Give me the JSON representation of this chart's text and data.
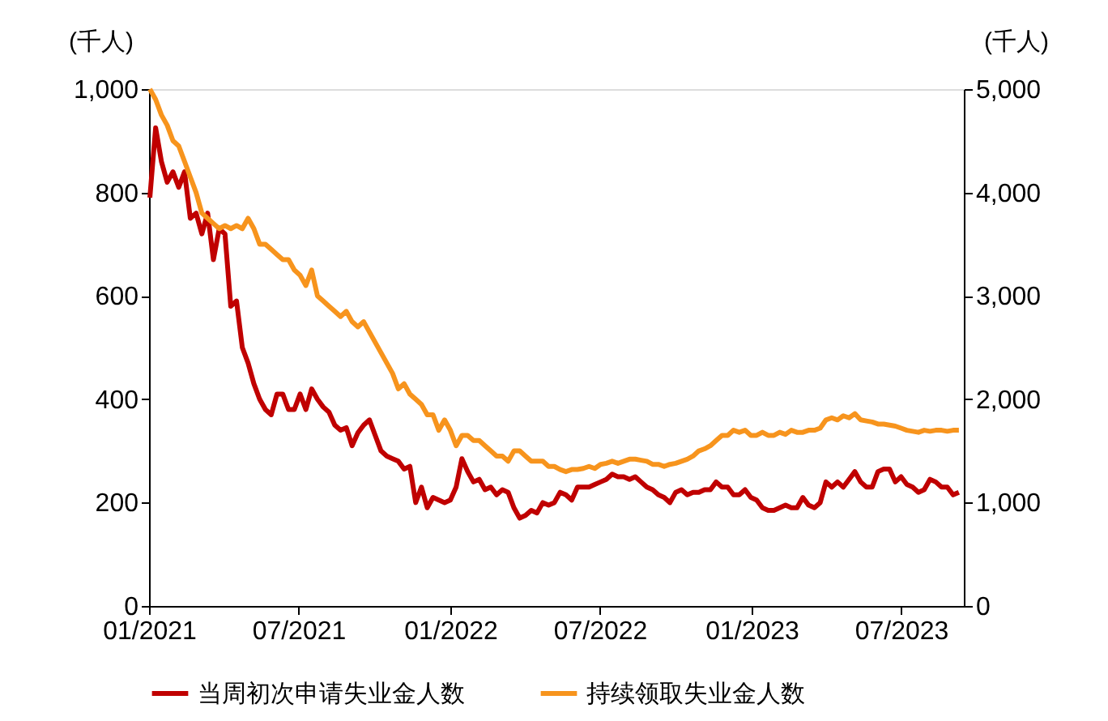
{
  "chart_data": {
    "type": "line",
    "ylabel": "(千人)",
    "y2label": "(千人)",
    "x": [
      "2021-01-02",
      "2021-01-09",
      "2021-01-16",
      "2021-01-23",
      "2021-01-30",
      "2021-02-06",
      "2021-02-13",
      "2021-02-20",
      "2021-02-27",
      "2021-03-06",
      "2021-03-13",
      "2021-03-20",
      "2021-03-27",
      "2021-04-03",
      "2021-04-10",
      "2021-04-17",
      "2021-04-24",
      "2021-05-01",
      "2021-05-08",
      "2021-05-15",
      "2021-05-22",
      "2021-05-29",
      "2021-06-05",
      "2021-06-12",
      "2021-06-19",
      "2021-06-26",
      "2021-07-03",
      "2021-07-10",
      "2021-07-17",
      "2021-07-24",
      "2021-07-31",
      "2021-08-07",
      "2021-08-14",
      "2021-08-21",
      "2021-08-28",
      "2021-09-04",
      "2021-09-11",
      "2021-09-18",
      "2021-09-25",
      "2021-10-02",
      "2021-10-09",
      "2021-10-16",
      "2021-10-23",
      "2021-10-30",
      "2021-11-06",
      "2021-11-13",
      "2021-11-20",
      "2021-11-27",
      "2021-12-04",
      "2021-12-11",
      "2021-12-18",
      "2021-12-25",
      "2022-01-01",
      "2022-01-08",
      "2022-01-15",
      "2022-01-22",
      "2022-01-29",
      "2022-02-05",
      "2022-02-12",
      "2022-02-19",
      "2022-02-26",
      "2022-03-05",
      "2022-03-12",
      "2022-03-19",
      "2022-03-26",
      "2022-04-02",
      "2022-04-09",
      "2022-04-16",
      "2022-04-23",
      "2022-04-30",
      "2022-05-07",
      "2022-05-14",
      "2022-05-21",
      "2022-05-28",
      "2022-06-04",
      "2022-06-11",
      "2022-06-18",
      "2022-06-25",
      "2022-07-02",
      "2022-07-09",
      "2022-07-16",
      "2022-07-23",
      "2022-07-30",
      "2022-08-06",
      "2022-08-13",
      "2022-08-20",
      "2022-08-27",
      "2022-09-03",
      "2022-09-10",
      "2022-09-17",
      "2022-09-24",
      "2022-10-01",
      "2022-10-08",
      "2022-10-15",
      "2022-10-22",
      "2022-10-29",
      "2022-11-05",
      "2022-11-12",
      "2022-11-19",
      "2022-11-26",
      "2022-12-03",
      "2022-12-10",
      "2022-12-17",
      "2022-12-24",
      "2022-12-31",
      "2023-01-07",
      "2023-01-14",
      "2023-01-21",
      "2023-01-28",
      "2023-02-04",
      "2023-02-11",
      "2023-02-18",
      "2023-02-25",
      "2023-03-04",
      "2023-03-11",
      "2023-03-18",
      "2023-03-25",
      "2023-04-01",
      "2023-04-08",
      "2023-04-15",
      "2023-04-22",
      "2023-04-29",
      "2023-05-06",
      "2023-05-13",
      "2023-05-20",
      "2023-05-27",
      "2023-06-03",
      "2023-06-10",
      "2023-06-17",
      "2023-06-24",
      "2023-07-01",
      "2023-07-08",
      "2023-07-15",
      "2023-07-22",
      "2023-07-29",
      "2023-08-05",
      "2023-08-12",
      "2023-08-19",
      "2023-08-26",
      "2023-09-02",
      "2023-09-09"
    ],
    "series": [
      {
        "name": "当周初次申请失业金人数",
        "color": "#c00000",
        "values": [
          790,
          925,
          860,
          820,
          840,
          810,
          840,
          750,
          760,
          720,
          760,
          670,
          730,
          720,
          580,
          590,
          500,
          470,
          430,
          400,
          380,
          370,
          410,
          410,
          380,
          380,
          410,
          380,
          420,
          400,
          385,
          375,
          350,
          340,
          345,
          310,
          335,
          350,
          360,
          330,
          300,
          290,
          285,
          280,
          265,
          270,
          200,
          230,
          190,
          210,
          205,
          200,
          205,
          230,
          285,
          260,
          240,
          245,
          225,
          230,
          215,
          225,
          220,
          190,
          170,
          175,
          185,
          180,
          200,
          195,
          200,
          220,
          215,
          205,
          230,
          230,
          230,
          235,
          240,
          245,
          255,
          250,
          250,
          245,
          250,
          240,
          230,
          225,
          215,
          210,
          200,
          220,
          225,
          215,
          220,
          220,
          225,
          225,
          240,
          230,
          230,
          215,
          215,
          225,
          210,
          205,
          190,
          185,
          185,
          190,
          195,
          190,
          190,
          210,
          195,
          190,
          200,
          240,
          230,
          240,
          230,
          245,
          260,
          240,
          230,
          230,
          260,
          265,
          265,
          240,
          250,
          235,
          230,
          220,
          225,
          245,
          240,
          230,
          230,
          215,
          220
        ]
      },
      {
        "name": "持续领取失业金人数",
        "color": "#f7941d",
        "axis": "y2",
        "values": [
          5000,
          4900,
          4750,
          4650,
          4500,
          4450,
          4300,
          4150,
          4000,
          3800,
          3750,
          3700,
          3650,
          3680,
          3650,
          3680,
          3650,
          3750,
          3650,
          3500,
          3500,
          3450,
          3400,
          3350,
          3350,
          3250,
          3200,
          3100,
          3250,
          3000,
          2950,
          2900,
          2850,
          2800,
          2850,
          2750,
          2700,
          2750,
          2650,
          2550,
          2450,
          2350,
          2250,
          2100,
          2150,
          2050,
          2000,
          1950,
          1850,
          1850,
          1700,
          1800,
          1700,
          1550,
          1650,
          1650,
          1600,
          1600,
          1550,
          1500,
          1450,
          1450,
          1400,
          1500,
          1500,
          1450,
          1400,
          1400,
          1400,
          1350,
          1350,
          1320,
          1300,
          1320,
          1320,
          1330,
          1350,
          1330,
          1370,
          1380,
          1400,
          1380,
          1400,
          1420,
          1420,
          1410,
          1400,
          1370,
          1370,
          1350,
          1370,
          1380,
          1400,
          1420,
          1450,
          1500,
          1520,
          1550,
          1600,
          1650,
          1650,
          1700,
          1680,
          1700,
          1650,
          1650,
          1680,
          1650,
          1650,
          1680,
          1660,
          1700,
          1680,
          1680,
          1700,
          1700,
          1720,
          1800,
          1820,
          1800,
          1840,
          1820,
          1860,
          1800,
          1790,
          1780,
          1760,
          1760,
          1750,
          1740,
          1720,
          1700,
          1690,
          1680,
          1700,
          1690,
          1700,
          1700,
          1690,
          1700,
          1700
        ]
      }
    ],
    "xlim": [
      "2021-01-01",
      "2023-09-15"
    ],
    "xticks": [
      {
        "value": "2021-01-01",
        "label": "01/2021"
      },
      {
        "value": "2021-07-01",
        "label": "07/2021"
      },
      {
        "value": "2022-01-01",
        "label": "01/2022"
      },
      {
        "value": "2022-07-01",
        "label": "07/2022"
      },
      {
        "value": "2023-01-01",
        "label": "01/2023"
      },
      {
        "value": "2023-07-01",
        "label": "07/2023"
      }
    ],
    "ylim": [
      0,
      1000
    ],
    "yticks": [
      {
        "value": 0,
        "label": "0"
      },
      {
        "value": 200,
        "label": "200"
      },
      {
        "value": 400,
        "label": "400"
      },
      {
        "value": 600,
        "label": "600"
      },
      {
        "value": 800,
        "label": "800"
      },
      {
        "value": 1000,
        "label": "1,000"
      }
    ],
    "y2lim": [
      0,
      5000
    ],
    "y2ticks": [
      {
        "value": 0,
        "label": "0"
      },
      {
        "value": 1000,
        "label": "1,000"
      },
      {
        "value": 2000,
        "label": "2,000"
      },
      {
        "value": 3000,
        "label": "3,000"
      },
      {
        "value": 4000,
        "label": "4,000"
      },
      {
        "value": 5000,
        "label": "5,000"
      }
    ],
    "grid": false,
    "legend": "bottom",
    "marker": "none",
    "line_style": "solid"
  }
}
